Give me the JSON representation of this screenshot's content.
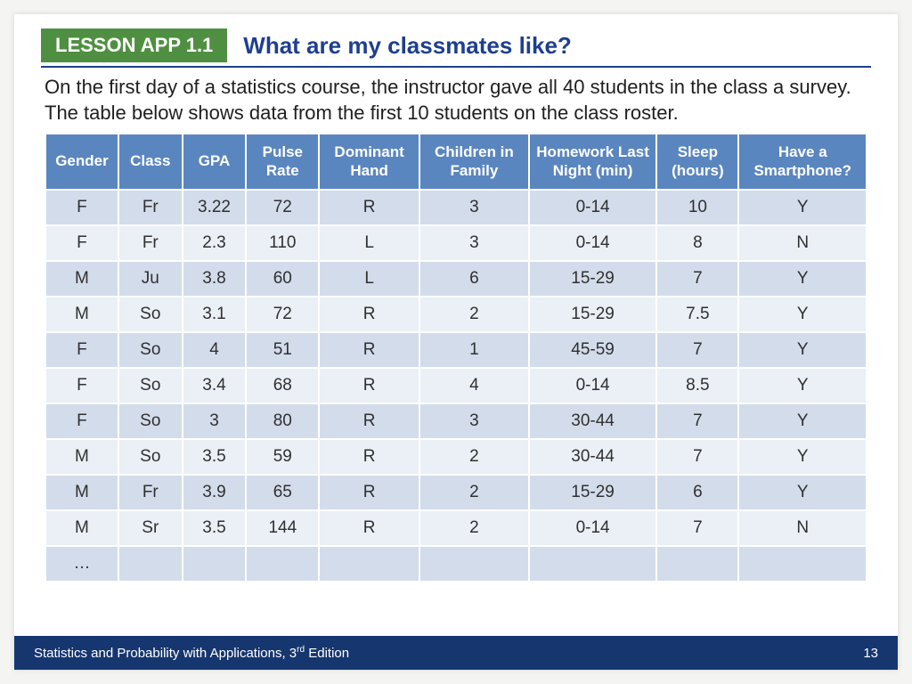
{
  "colors": {
    "badge_bg": "#4f8f41",
    "title_text": "#1e3f8f",
    "rule": "#1e3f8f",
    "th_bg": "#5a86bf",
    "row_even": "#d3dceb",
    "row_odd": "#ebeff6",
    "footer_bg": "#16366f",
    "body_text": "#202020"
  },
  "header": {
    "badge": "LESSON APP 1.1",
    "title": "What are my classmates like?"
  },
  "intro": "On the first day of a statistics course, the instructor gave all 40 students in the class a survey. The table below shows data from the first 10 students on the class roster.",
  "table": {
    "columns": [
      {
        "label": "Gender",
        "width": "8%"
      },
      {
        "label": "Class",
        "width": "7%"
      },
      {
        "label": "GPA",
        "width": "7%"
      },
      {
        "label": "Pulse Rate",
        "width": "8%"
      },
      {
        "label": "Dominant Hand",
        "width": "11%"
      },
      {
        "label": "Children in Family",
        "width": "12%"
      },
      {
        "label": "Homework Last Night (min)",
        "width": "14%"
      },
      {
        "label": "Sleep (hours)",
        "width": "9%"
      },
      {
        "label": "Have a Smartphone?",
        "width": "14%"
      }
    ],
    "rows": [
      [
        "F",
        "Fr",
        "3.22",
        "72",
        "R",
        "3",
        "0-14",
        "10",
        "Y"
      ],
      [
        "F",
        "Fr",
        "2.3",
        "110",
        "L",
        "3",
        "0-14",
        "8",
        "N"
      ],
      [
        "M",
        "Ju",
        "3.8",
        "60",
        "L",
        "6",
        "15-29",
        "7",
        "Y"
      ],
      [
        "M",
        "So",
        "3.1",
        "72",
        "R",
        "2",
        "15-29",
        "7.5",
        "Y"
      ],
      [
        "F",
        "So",
        "4",
        "51",
        "R",
        "1",
        "45-59",
        "7",
        "Y"
      ],
      [
        "F",
        "So",
        "3.4",
        "68",
        "R",
        "4",
        "0-14",
        "8.5",
        "Y"
      ],
      [
        "F",
        "So",
        "3",
        "80",
        "R",
        "3",
        "30-44",
        "7",
        "Y"
      ],
      [
        "M",
        "So",
        "3.5",
        "59",
        "R",
        "2",
        "30-44",
        "7",
        "Y"
      ],
      [
        "M",
        "Fr",
        "3.9",
        "65",
        "R",
        "2",
        "15-29",
        "6",
        "Y"
      ],
      [
        "M",
        "Sr",
        "3.5",
        "144",
        "R",
        "2",
        "0-14",
        "7",
        "N"
      ],
      [
        "…",
        "",
        "",
        "",
        "",
        "",
        "",
        "",
        ""
      ]
    ]
  },
  "footer": {
    "left_pre": "Statistics and Probability with Applications, 3",
    "left_sup": "rd",
    "left_post": " Edition",
    "page": "13"
  }
}
